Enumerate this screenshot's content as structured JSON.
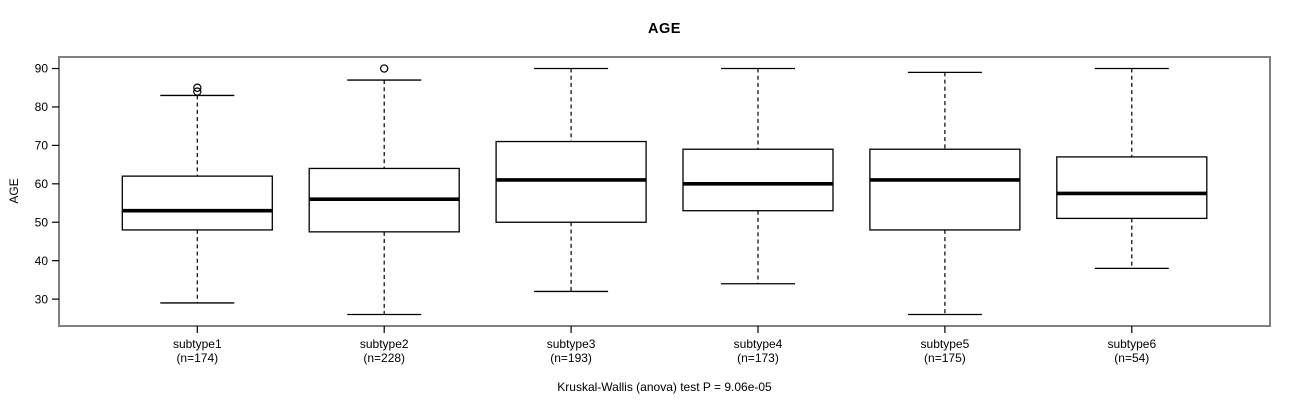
{
  "chart_data": {
    "type": "box",
    "title": "AGE",
    "xlabel": "",
    "ylabel": "AGE",
    "caption": "Kruskal-Wallis (anova) test P = 9.06e-05",
    "ylim": [
      23,
      93
    ],
    "yticks": [
      30,
      40,
      50,
      60,
      70,
      80,
      90
    ],
    "grid": false,
    "frame_color": "#808080",
    "line_color": "#000000",
    "groups": [
      {
        "label": "subtype1",
        "n_label": "(n=174)",
        "low": 29,
        "q1": 48,
        "median": 53,
        "q3": 62,
        "high": 83,
        "outliers": [
          84,
          85
        ]
      },
      {
        "label": "subtype2",
        "n_label": "(n=228)",
        "low": 26,
        "q1": 47.5,
        "median": 56,
        "q3": 64,
        "high": 87,
        "outliers": [
          90
        ]
      },
      {
        "label": "subtype3",
        "n_label": "(n=193)",
        "low": 32,
        "q1": 50,
        "median": 61,
        "q3": 71,
        "high": 90,
        "outliers": []
      },
      {
        "label": "subtype4",
        "n_label": "(n=173)",
        "low": 34,
        "q1": 53,
        "median": 60,
        "q3": 69,
        "high": 90,
        "outliers": []
      },
      {
        "label": "subtype5",
        "n_label": "(n=175)",
        "low": 26,
        "q1": 48,
        "median": 61,
        "q3": 69,
        "high": 89,
        "outliers": []
      },
      {
        "label": "subtype6",
        "n_label": "(n=54)",
        "low": 38,
        "q1": 51,
        "median": 57.5,
        "q3": 67,
        "high": 90,
        "outliers": []
      }
    ]
  }
}
